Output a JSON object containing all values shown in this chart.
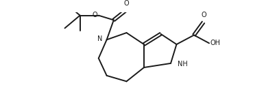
{
  "bg_color": "#ffffff",
  "line_color": "#1a1a1a",
  "line_width": 1.4,
  "font_size": 7.0,
  "fig_width": 3.69,
  "fig_height": 1.54,
  "dpi": 100,
  "xlim": [
    0,
    9.5
  ],
  "ylim": [
    0,
    4.0
  ]
}
